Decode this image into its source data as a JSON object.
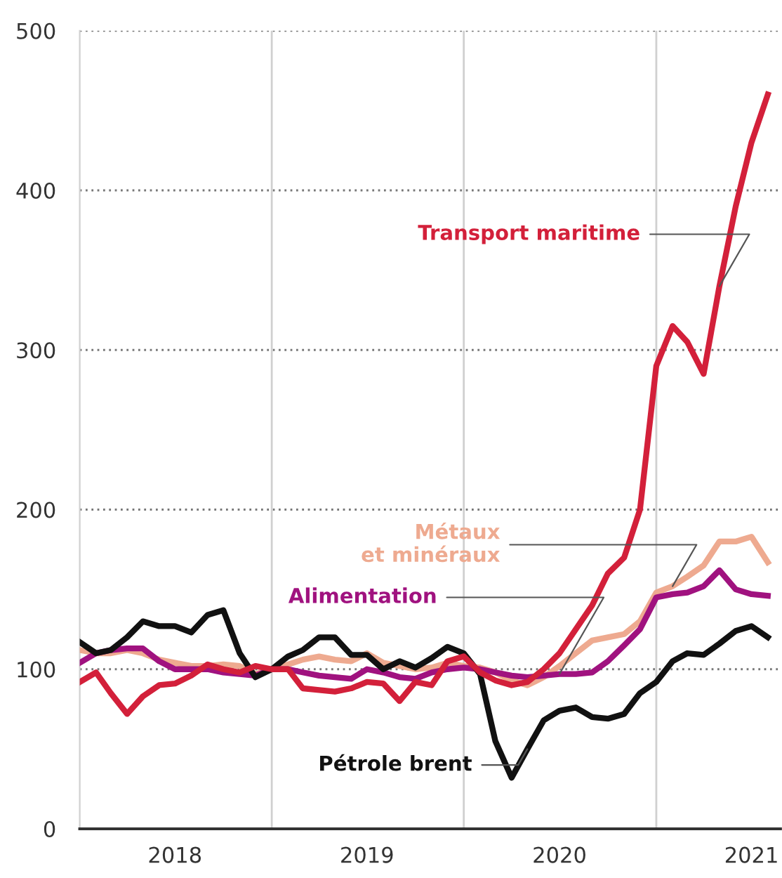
{
  "chart_data": {
    "type": "line",
    "x": [
      "2018-01",
      "2018-02",
      "2018-03",
      "2018-04",
      "2018-05",
      "2018-06",
      "2018-07",
      "2018-08",
      "2018-09",
      "2018-10",
      "2018-11",
      "2018-12",
      "2019-01",
      "2019-02",
      "2019-03",
      "2019-04",
      "2019-05",
      "2019-06",
      "2019-07",
      "2019-08",
      "2019-09",
      "2019-10",
      "2019-11",
      "2019-12",
      "2020-01",
      "2020-02",
      "2020-03",
      "2020-04",
      "2020-05",
      "2020-06",
      "2020-07",
      "2020-08",
      "2020-09",
      "2020-10",
      "2020-11",
      "2020-12",
      "2021-01",
      "2021-02",
      "2021-03",
      "2021-04",
      "2021-05",
      "2021-06",
      "2021-07",
      "2021-08"
    ],
    "series": [
      {
        "name": "Transport maritime",
        "color": "#d3203a",
        "values": [
          92,
          98,
          85,
          72,
          83,
          90,
          91,
          96,
          103,
          100,
          98,
          102,
          100,
          100,
          88,
          87,
          86,
          88,
          92,
          91,
          80,
          92,
          90,
          105,
          108,
          98,
          93,
          90,
          92,
          100,
          110,
          125,
          140,
          160,
          170,
          200,
          290,
          315,
          305,
          285,
          340,
          390,
          430,
          460
        ]
      },
      {
        "name": "Métaux\net minéraux",
        "color": "#eeaa90",
        "values": [
          112,
          110,
          110,
          112,
          110,
          106,
          104,
          102,
          102,
          103,
          102,
          97,
          100,
          103,
          106,
          108,
          106,
          105,
          110,
          104,
          102,
          100,
          101,
          104,
          102,
          101,
          98,
          93,
          90,
          95,
          102,
          110,
          118,
          120,
          122,
          130,
          148,
          152,
          158,
          165,
          180,
          180,
          183,
          167
        ]
      },
      {
        "name": "Alimentation",
        "color": "#a0127f",
        "values": [
          104,
          110,
          112,
          113,
          113,
          105,
          100,
          100,
          100,
          98,
          97,
          96,
          100,
          100,
          98,
          96,
          95,
          94,
          100,
          98,
          95,
          94,
          98,
          100,
          101,
          100,
          98,
          96,
          95,
          96,
          97,
          97,
          98,
          105,
          115,
          125,
          145,
          147,
          148,
          152,
          162,
          150,
          147,
          146
        ]
      },
      {
        "name": "Pétrole brent",
        "color": "#111111",
        "values": [
          117,
          110,
          112,
          120,
          130,
          127,
          127,
          123,
          134,
          137,
          110,
          95,
          100,
          108,
          112,
          120,
          120,
          109,
          109,
          100,
          105,
          101,
          107,
          114,
          110,
          97,
          55,
          32,
          50,
          68,
          74,
          76,
          70,
          69,
          72,
          85,
          92,
          105,
          110,
          109,
          116,
          124,
          127,
          120
        ]
      }
    ],
    "xlim": [
      "2018-01-01",
      "2021-08-25"
    ],
    "xticks": [
      {
        "value": "2018-07-01",
        "label": "2018"
      },
      {
        "value": "2019-07-01",
        "label": "2019"
      },
      {
        "value": "2020-07-01",
        "label": "2020"
      },
      {
        "value": "2021-07-01",
        "label": "2021"
      }
    ],
    "ylim": [
      0,
      500
    ],
    "yticks": [
      0,
      100,
      200,
      300,
      400,
      500
    ],
    "ref_lines": [
      {
        "axis": "x",
        "value": "2019-01-01",
        "label": null,
        "color": "#d0d0d0"
      },
      {
        "axis": "x",
        "value": "2020-01-01",
        "label": null,
        "color": "#d0d0d0"
      },
      {
        "axis": "x",
        "value": "2021-01-01",
        "label": null,
        "color": "#d0d0d0"
      }
    ],
    "grid": "y",
    "legend": false,
    "marker": "none",
    "line_style": "solid"
  }
}
